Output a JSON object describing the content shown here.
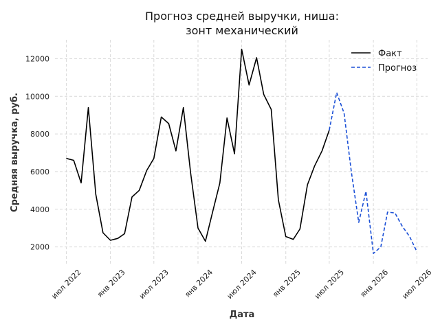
{
  "chart_data": {
    "type": "line",
    "title": [
      "Прогноз средней выручки, ниша:",
      "зонт механический"
    ],
    "xlabel": "Дата",
    "ylabel": "Средняя выручка, руб.",
    "x_ticks": [
      {
        "date": "2022-07-01",
        "label": "июл 2022"
      },
      {
        "date": "2023-01-01",
        "label": "янв 2023"
      },
      {
        "date": "2023-07-01",
        "label": "июл 2023"
      },
      {
        "date": "2024-01-01",
        "label": "янв 2024"
      },
      {
        "date": "2024-07-01",
        "label": "июл 2024"
      },
      {
        "date": "2025-01-01",
        "label": "янв 2025"
      },
      {
        "date": "2025-07-01",
        "label": "июл 2025"
      },
      {
        "date": "2026-01-01",
        "label": "янв 2026"
      },
      {
        "date": "2026-07-01",
        "label": "июл 2026"
      }
    ],
    "y_ticks": [
      2000,
      4000,
      6000,
      8000,
      10000,
      12000
    ],
    "xlim": [
      "2022-05-15",
      "2026-08-15"
    ],
    "ylim": [
      1000,
      13000
    ],
    "grid": true,
    "legend_position": "top-right",
    "series": [
      {
        "name": "Факт",
        "color": "#000000",
        "style": "solid",
        "x": [
          "2022-07-01",
          "2022-08-01",
          "2022-09-01",
          "2022-10-01",
          "2022-11-01",
          "2022-12-01",
          "2023-01-01",
          "2023-02-01",
          "2023-03-01",
          "2023-04-01",
          "2023-05-01",
          "2023-06-01",
          "2023-07-01",
          "2023-08-01",
          "2023-09-01",
          "2023-10-01",
          "2023-11-01",
          "2023-12-01",
          "2024-01-01",
          "2024-02-01",
          "2024-03-01",
          "2024-04-01",
          "2024-05-01",
          "2024-06-01",
          "2024-07-01",
          "2024-08-01",
          "2024-09-01",
          "2024-10-01",
          "2024-11-01",
          "2024-12-01",
          "2025-01-01",
          "2025-02-01",
          "2025-03-01",
          "2025-04-01",
          "2025-05-01",
          "2025-06-01",
          "2025-07-01"
        ],
        "y": [
          6700,
          6600,
          5400,
          9400,
          4800,
          2750,
          2350,
          2450,
          2700,
          4650,
          5000,
          6050,
          6700,
          8900,
          8550,
          7100,
          9400,
          5950,
          3000,
          2300,
          3800,
          5400,
          8850,
          6950,
          12500,
          10600,
          12050,
          10100,
          9300,
          4500,
          2550,
          2400,
          2950,
          5300,
          6300,
          7100,
          8200
        ]
      },
      {
        "name": "Прогноз",
        "color": "#1a4fd6",
        "style": "dashed",
        "x": [
          "2025-07-01",
          "2025-08-01",
          "2025-09-01",
          "2025-10-01",
          "2025-11-01",
          "2025-12-01",
          "2026-01-01",
          "2026-02-01",
          "2026-03-01",
          "2026-04-01",
          "2026-05-01",
          "2026-06-01",
          "2026-07-01"
        ],
        "y": [
          8200,
          10200,
          9100,
          6000,
          3300,
          4950,
          1650,
          2000,
          3850,
          3800,
          3100,
          2550,
          1750
        ]
      }
    ]
  }
}
